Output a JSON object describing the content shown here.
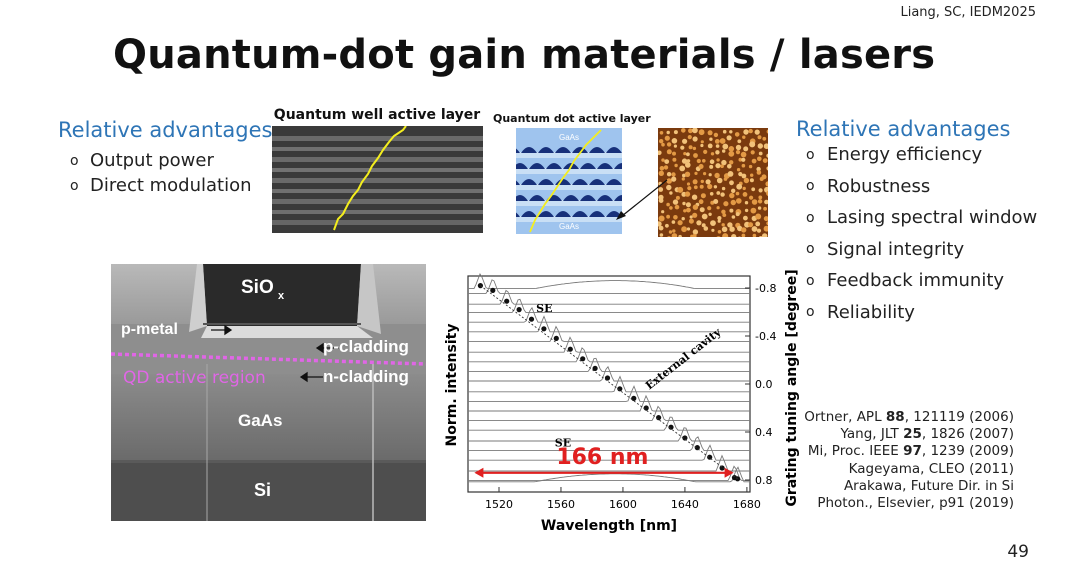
{
  "header": {
    "credit": "Liang, SC, IEDM2025"
  },
  "title": "Quantum-dot gain materials / lasers",
  "left_advantages": {
    "heading": "Relative advantages",
    "items": [
      "Output power",
      "Direct modulation"
    ],
    "bullet": "o"
  },
  "right_advantages": {
    "heading": "Relative advantages",
    "items": [
      "Energy efficiency",
      "Robustness",
      "Lasing spectral window",
      "Signal integrity",
      "Feedback immunity",
      "Reliability"
    ],
    "bullet": "o"
  },
  "qw_image": {
    "label": "Quantum well active layer"
  },
  "qd_image": {
    "label": "Quantum dot active layer",
    "top_text": "GaAs",
    "bottom_text": "GaAs"
  },
  "sem": {
    "sio_label": "SiO",
    "sio_subscript": "x",
    "p_metal": "p-metal",
    "p_cladding": "p-cladding",
    "qd_region": "QD active region",
    "n_cladding": "n-cladding",
    "gaas": "GaAs",
    "si": "Si",
    "colors": {
      "qd_region": "#e066e6",
      "dotted": "#e066e6"
    }
  },
  "spectrum_chart": {
    "x_label": "Wavelength [nm]",
    "y_left_label": "Norm. intensity",
    "y_right_label": "Grating tuning angle [degree]",
    "x_ticks": [
      "1520",
      "1560",
      "1600",
      "1640",
      "1680"
    ],
    "right_ticks": [
      "-0.8",
      "-0.4",
      "0.0",
      "0.4",
      "0.8"
    ],
    "annotation_se_top": "SE",
    "annotation_se_bottom": "SE",
    "annotation_cavity": "External cavity",
    "span_label": "166 nm",
    "span_color": "#e02020"
  },
  "chart_data": {
    "type": "line",
    "title": "",
    "xlabel": "Wavelength [nm]",
    "ylabel": "Norm. intensity",
    "y2label": "Grating tuning angle [degree]",
    "xlim": [
      1500,
      1682
    ],
    "y2lim": [
      -0.9,
      0.9
    ],
    "x_ticks": [
      1520,
      1560,
      1600,
      1640,
      1680
    ],
    "y2_ticks": [
      -0.8,
      -0.4,
      0.0,
      0.4,
      0.8
    ],
    "annotations": [
      "SE",
      "SE",
      "External cavity",
      "166 nm"
    ],
    "series": [
      {
        "name": "External cavity",
        "x": [
          1508,
          1516,
          1525,
          1533,
          1541,
          1549,
          1557,
          1566,
          1574,
          1582,
          1590,
          1598,
          1607,
          1615,
          1623,
          1631,
          1640,
          1648,
          1656,
          1664,
          1672,
          1674
        ],
        "y": [
          -0.82,
          -0.78,
          -0.69,
          -0.62,
          -0.54,
          -0.46,
          -0.38,
          -0.29,
          -0.21,
          -0.13,
          -0.05,
          0.04,
          0.12,
          0.2,
          0.28,
          0.36,
          0.45,
          0.53,
          0.61,
          0.7,
          0.78,
          0.79
        ]
      }
    ]
  },
  "page_number": "49",
  "references": [
    {
      "pre": "Ortner, APL ",
      "bold": "88",
      "post": ", 121119 (2006)"
    },
    {
      "pre": "Yang, JLT ",
      "bold": "25",
      "post": ", 1826 (2007)"
    },
    {
      "pre": "Mi, Proc. IEEE ",
      "bold": "97",
      "post": ", 1239 (2009)"
    },
    {
      "pre": "Kageyama, CLEO (2011)",
      "bold": "",
      "post": ""
    },
    {
      "pre": "Arakawa, Future Dir. in Si",
      "bold": "",
      "post": ""
    },
    {
      "pre": "Photon., Elsevier, p91 (2019)",
      "bold": "",
      "post": ""
    }
  ]
}
